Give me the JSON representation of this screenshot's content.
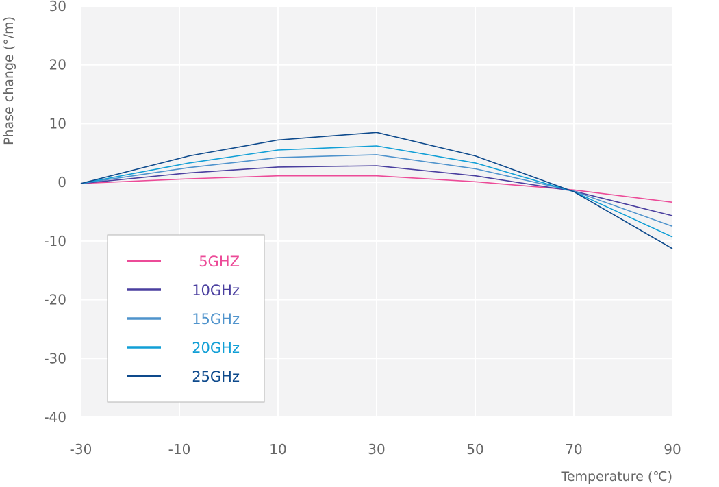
{
  "chart_data": {
    "type": "line",
    "xlabel": "Temperature (℃)",
    "ylabel": "Phase change (°/m)",
    "xlim": [
      -30,
      90
    ],
    "ylim": [
      -40,
      30
    ],
    "xticks": [
      -30,
      -10,
      10,
      30,
      50,
      70,
      90
    ],
    "yticks": [
      30,
      20,
      10,
      0,
      -10,
      -20,
      -30,
      -40
    ],
    "grid": true,
    "legend_position": "bottom-left",
    "x": [
      -30,
      -8,
      10,
      30,
      50,
      70,
      90
    ],
    "series": [
      {
        "name": "5GHZ",
        "color": "#ec4b98",
        "values": [
          -0.2,
          0.6,
          1.1,
          1.1,
          0.1,
          -1.3,
          -3.4
        ]
      },
      {
        "name": "10GHz",
        "color": "#4a3f9f",
        "values": [
          -0.2,
          1.6,
          2.6,
          2.8,
          1.1,
          -1.5,
          -5.7
        ]
      },
      {
        "name": "15GHz",
        "color": "#4f93cc",
        "values": [
          -0.2,
          2.5,
          4.2,
          4.7,
          2.3,
          -1.5,
          -7.5
        ]
      },
      {
        "name": "20GHz",
        "color": "#119fd6",
        "values": [
          -0.2,
          3.3,
          5.5,
          6.2,
          3.3,
          -1.6,
          -9.3
        ]
      },
      {
        "name": "25GHz",
        "color": "#0e4a8c",
        "values": [
          -0.2,
          4.5,
          7.2,
          8.5,
          4.5,
          -1.6,
          -11.3
        ]
      }
    ]
  }
}
